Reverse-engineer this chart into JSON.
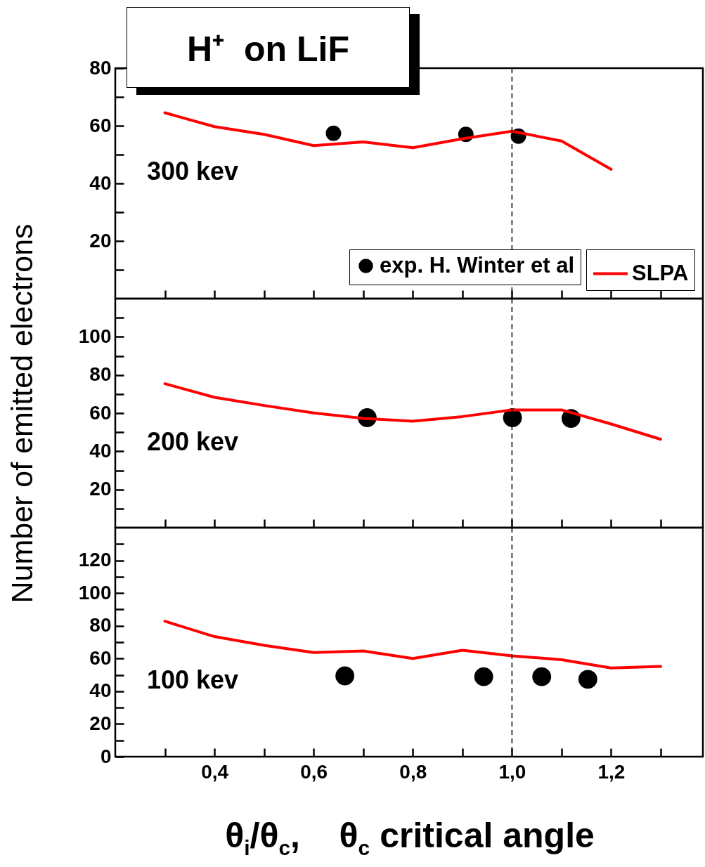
{
  "chart_data": [
    {
      "type": "line",
      "title": "H⁺  on LiF",
      "annotations": [
        "300 kev"
      ],
      "xlim": [
        0.2,
        1.385
      ],
      "xticks": [
        {
          "value": 0.3,
          "label": null
        },
        {
          "value": 0.4,
          "label": null
        },
        {
          "value": 0.5,
          "label": null
        },
        {
          "value": 0.6,
          "label": null
        },
        {
          "value": 0.7,
          "label": null
        },
        {
          "value": 0.8,
          "label": null
        },
        {
          "value": 0.9,
          "label": null
        },
        {
          "value": 1.0,
          "label": null
        },
        {
          "value": 1.1,
          "label": null
        },
        {
          "value": 1.2,
          "label": null
        },
        {
          "value": 1.3,
          "label": null
        }
      ],
      "ylim": [
        0,
        80
      ],
      "yticks": [
        {
          "value": 10,
          "label": null
        },
        20,
        {
          "value": 30,
          "label": null
        },
        40,
        {
          "value": 50,
          "label": null
        },
        60,
        {
          "value": 70,
          "label": null
        },
        80
      ],
      "tick_labels": "y",
      "legend": "bottom right",
      "ref_lines": [
        {
          "axis": "x",
          "value": 1.0,
          "line_style": "dashed"
        }
      ],
      "series": [
        {
          "name": "SLPA",
          "color": "#ff0000",
          "x": [
            0.3,
            0.4,
            0.5,
            0.6,
            0.7,
            0.8,
            0.9,
            1.0,
            1.1,
            1.2
          ],
          "values": [
            64.5,
            59.7,
            57.0,
            53.1,
            54.4,
            52.4,
            55.5,
            58.1,
            54.7,
            44.9
          ]
        },
        {
          "name": "exp. H. Winter et al",
          "type": "scatter",
          "marker": "circle",
          "color": "#000000",
          "x": [
            0.64,
            0.907,
            1.013
          ],
          "values": [
            57.4,
            57.0,
            56.4
          ]
        }
      ]
    },
    {
      "type": "line",
      "ylabel": "Number of emitted electrons",
      "annotations": [
        "200 kev"
      ],
      "xlim": [
        0.2,
        1.385
      ],
      "xticks": [
        {
          "value": 0.3,
          "label": null
        },
        {
          "value": 0.4,
          "label": null
        },
        {
          "value": 0.5,
          "label": null
        },
        {
          "value": 0.6,
          "label": null
        },
        {
          "value": 0.7,
          "label": null
        },
        {
          "value": 0.8,
          "label": null
        },
        {
          "value": 0.9,
          "label": null
        },
        {
          "value": 1.0,
          "label": null
        },
        {
          "value": 1.1,
          "label": null
        },
        {
          "value": 1.2,
          "label": null
        },
        {
          "value": 1.3,
          "label": null
        }
      ],
      "ylim": [
        0,
        120
      ],
      "yticks": [
        {
          "value": 10,
          "label": null
        },
        20,
        {
          "value": 30,
          "label": null
        },
        40,
        {
          "value": 50,
          "label": null
        },
        60,
        {
          "value": 70,
          "label": null
        },
        80,
        {
          "value": 90,
          "label": null
        },
        100,
        {
          "value": 110,
          "label": null
        }
      ],
      "tick_labels": "y",
      "ref_lines": [
        {
          "axis": "x",
          "value": 1.0,
          "line_style": "dashed"
        }
      ],
      "series": [
        {
          "color": "#ff0000",
          "x": [
            0.3,
            0.4,
            0.5,
            0.6,
            0.7,
            0.8,
            0.9,
            1.0,
            1.1,
            1.2,
            1.3
          ],
          "values": [
            75.4,
            68.3,
            64.0,
            60.1,
            57.2,
            55.8,
            58.2,
            61.7,
            61.7,
            54.3,
            46.3
          ]
        },
        {
          "type": "scatter",
          "marker": "circle",
          "color": "#000000",
          "x": [
            0.708,
            1.001,
            1.119
          ],
          "values": [
            57.6,
            57.6,
            57.2
          ]
        }
      ]
    },
    {
      "type": "line",
      "xlabel": "θ$_{i}$/θ$_{c}$,    θ$_{c}$ critical angle",
      "annotations": [
        "100 kev"
      ],
      "xlim": [
        0.2,
        1.385
      ],
      "xticks": [
        {
          "value": 0.3,
          "label": null
        },
        {
          "value": 0.4,
          "label": "0,4"
        },
        {
          "value": 0.5,
          "label": null
        },
        {
          "value": 0.6,
          "label": "0,6"
        },
        {
          "value": 0.7,
          "label": null
        },
        {
          "value": 0.8,
          "label": "0,8"
        },
        {
          "value": 0.9,
          "label": null
        },
        {
          "value": 1.0,
          "label": "1,0"
        },
        {
          "value": 1.1,
          "label": null
        },
        {
          "value": 1.2,
          "label": "1,2"
        },
        {
          "value": 1.3,
          "label": null
        }
      ],
      "ylim": [
        0,
        140
      ],
      "yticks": [
        0,
        {
          "value": 10,
          "label": null
        },
        20,
        {
          "value": 30,
          "label": null
        },
        40,
        {
          "value": 50,
          "label": null
        },
        60,
        {
          "value": 70,
          "label": null
        },
        80,
        {
          "value": 90,
          "label": null
        },
        100,
        {
          "value": 110,
          "label": null
        },
        120,
        {
          "value": 130,
          "label": null
        }
      ],
      "ref_lines": [
        {
          "axis": "x",
          "value": 1.0,
          "line_style": "dashed"
        }
      ],
      "series": [
        {
          "color": "#ff0000",
          "x": [
            0.3,
            0.4,
            0.5,
            0.6,
            0.7,
            0.8,
            0.9,
            1.0,
            1.1,
            1.2,
            1.3
          ],
          "values": [
            82.8,
            73.4,
            68.1,
            63.7,
            64.6,
            60.0,
            65.1,
            61.6,
            59.3,
            54.2,
            55.2
          ]
        },
        {
          "type": "scatter",
          "marker": "circle",
          "color": "#000000",
          "x": [
            0.663,
            0.943,
            1.06,
            1.153
          ],
          "values": [
            49.4,
            48.9,
            48.9,
            47.3
          ]
        }
      ]
    }
  ]
}
